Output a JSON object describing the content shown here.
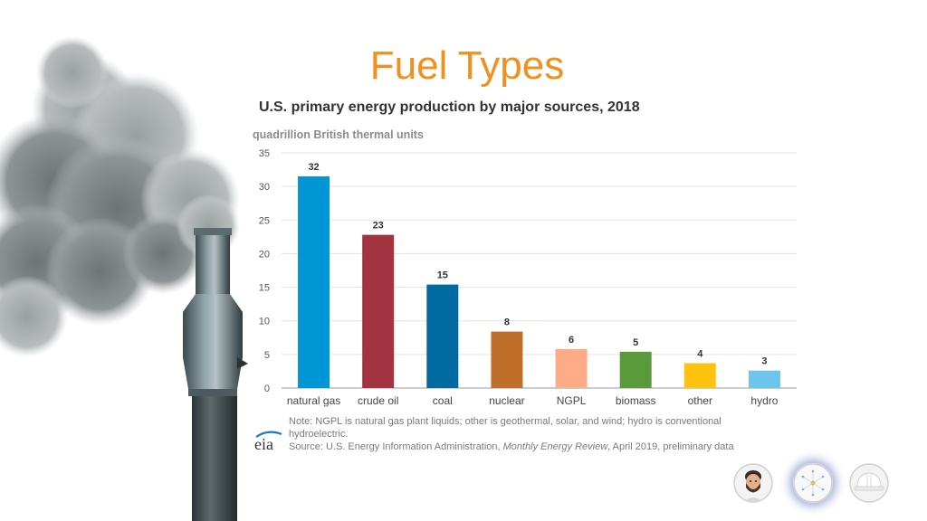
{
  "slide": {
    "title": "Fuel Types"
  },
  "chart_data": {
    "type": "bar",
    "title": "U.S. primary energy production by major sources, 2018",
    "ylabel": "quadrillion British thermal units",
    "xlabel": "",
    "categories": [
      "natural gas",
      "crude oil",
      "coal",
      "nuclear",
      "NGPL",
      "biomass",
      "other",
      "hydro"
    ],
    "values": [
      31.5,
      22.8,
      15.4,
      8.4,
      5.8,
      5.4,
      3.7,
      2.6
    ],
    "data_labels": [
      "32",
      "23",
      "15",
      "8",
      "6",
      "5",
      "4",
      "3"
    ],
    "colors": [
      "#0096d6",
      "#a33340",
      "#006ba0",
      "#c06f2a",
      "#ffab88",
      "#5a9a3a",
      "#ffc20e",
      "#6cc5ec"
    ],
    "yticks": [
      "0",
      "5",
      "10",
      "15",
      "20",
      "25",
      "30",
      "35"
    ],
    "ylim": [
      0,
      35
    ],
    "grid": true,
    "legend": "none"
  },
  "footer": {
    "note_line": "Note: NGPL is natural gas plant liquids; other is geothermal, solar, and wind; hydro is conventional hydroelectric.",
    "source_prefix": "Source: U.S. Energy Information Administration, ",
    "source_title": "Monthly Energy Review",
    "source_suffix": ", April 2019, preliminary data",
    "logo_text": "eia"
  },
  "participants": [
    {
      "icon": "man-with-beard-avatar"
    },
    {
      "icon": "atom-avatar"
    },
    {
      "icon": "hard-hat-avatar"
    }
  ]
}
